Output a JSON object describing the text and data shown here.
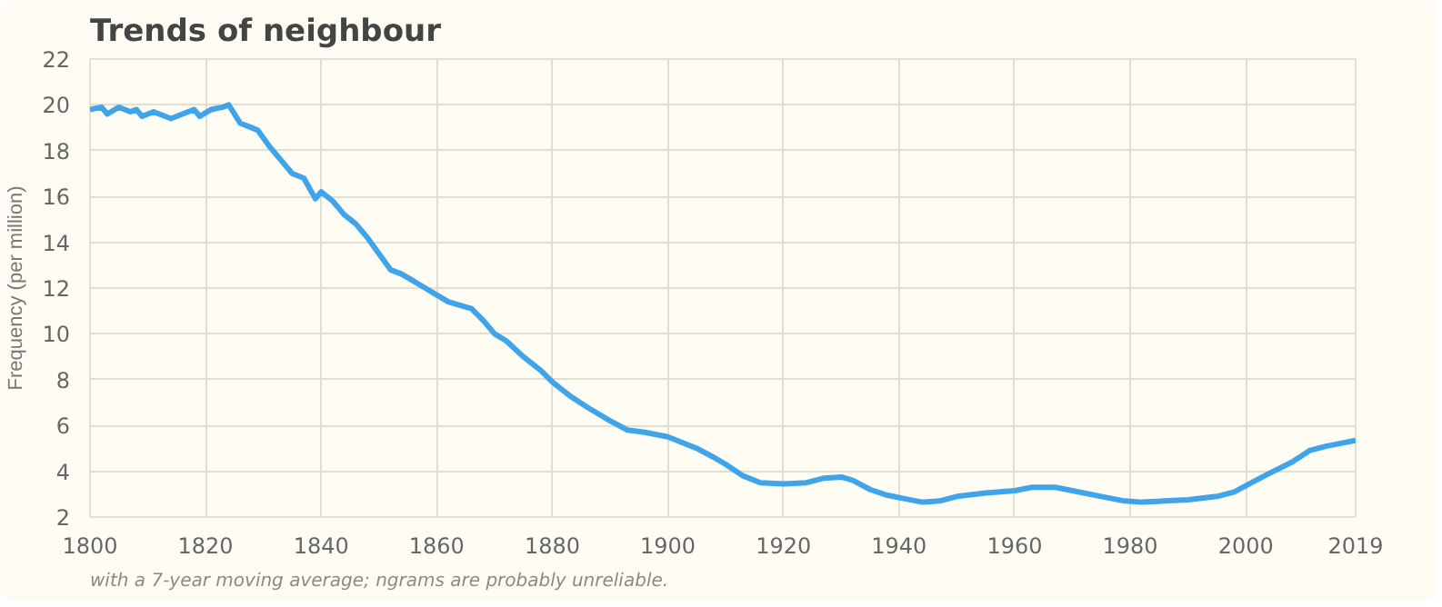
{
  "chart_data": {
    "type": "line",
    "title": "Trends of neighbour",
    "ylabel": "Frequency (per million)",
    "x": [
      1800,
      1802,
      1803,
      1805,
      1807,
      1808,
      1809,
      1811,
      1813,
      1814,
      1816,
      1818,
      1819,
      1821,
      1823,
      1824,
      1826,
      1828,
      1829,
      1831,
      1833,
      1835,
      1837,
      1839,
      1840,
      1842,
      1844,
      1846,
      1848,
      1850,
      1852,
      1854,
      1856,
      1858,
      1860,
      1862,
      1866,
      1868,
      1870,
      1872,
      1875,
      1878,
      1880,
      1883,
      1886,
      1890,
      1893,
      1896,
      1900,
      1905,
      1908,
      1910,
      1913,
      1916,
      1920,
      1924,
      1927,
      1930,
      1932,
      1935,
      1938,
      1941,
      1944,
      1947,
      1950,
      1955,
      1960,
      1963,
      1967,
      1970,
      1975,
      1979,
      1982,
      1986,
      1990,
      1995,
      1998,
      2001,
      2004,
      2008,
      2011,
      2014,
      2019
    ],
    "series": [
      {
        "color": "#3fa4ea",
        "values": [
          19.8,
          19.9,
          19.6,
          19.9,
          19.7,
          19.8,
          19.5,
          19.7,
          19.5,
          19.4,
          19.6,
          19.8,
          19.5,
          19.8,
          19.9,
          20.0,
          19.2,
          19.0,
          18.9,
          18.2,
          17.6,
          17.0,
          16.8,
          15.9,
          16.2,
          15.8,
          15.2,
          14.8,
          14.2,
          13.5,
          12.8,
          12.6,
          12.3,
          12.0,
          11.7,
          11.4,
          11.1,
          10.6,
          10.0,
          9.7,
          9.0,
          8.4,
          7.9,
          7.3,
          6.8,
          6.2,
          5.8,
          5.7,
          5.5,
          5.0,
          4.6,
          4.3,
          3.8,
          3.5,
          3.45,
          3.5,
          3.7,
          3.75,
          3.6,
          3.2,
          2.95,
          2.8,
          2.65,
          2.7,
          2.9,
          3.05,
          3.15,
          3.3,
          3.3,
          3.15,
          2.9,
          2.7,
          2.65,
          2.7,
          2.75,
          2.9,
          3.1,
          3.5,
          3.9,
          4.4,
          4.9,
          5.1,
          5.35
        ]
      }
    ],
    "xlim": [
      1800,
      2019
    ],
    "ylim": [
      2,
      22
    ],
    "xticks": [
      1800,
      1820,
      1840,
      1860,
      1880,
      1900,
      1920,
      1940,
      1960,
      1980,
      2000,
      2019
    ],
    "yticks": [
      2,
      4,
      6,
      8,
      10,
      12,
      14,
      16,
      18,
      20,
      22
    ],
    "grid": true,
    "marker": "none",
    "line_style": "solid",
    "annotations": [
      "with a 7-year moving average; ngrams are probably unreliable."
    ]
  }
}
